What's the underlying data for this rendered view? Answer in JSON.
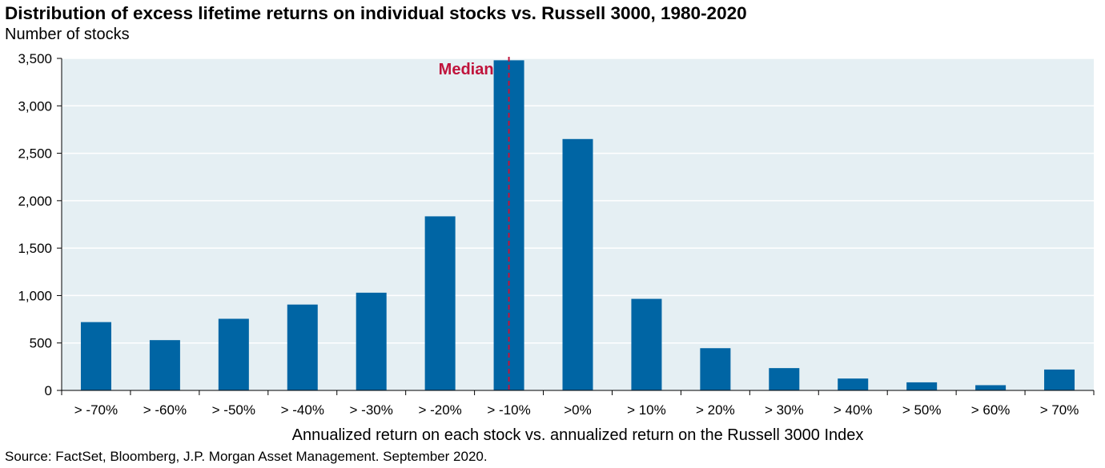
{
  "header": {
    "title": "Distribution of excess lifetime returns on individual stocks vs. Russell 3000, 1980-2020",
    "subtitle": "Number of stocks"
  },
  "footer": {
    "source": "Source: FactSet, Bloomberg, J.P. Morgan Asset Management. September 2020."
  },
  "chart_data": {
    "type": "bar",
    "title": "Distribution of excess lifetime returns on individual stocks vs. Russell 3000, 1980-2020",
    "ylabel": "Number of stocks",
    "xlabel": "Annualized return on each stock vs. annualized return on the Russell 3000 Index",
    "categories": [
      "> -70%",
      "> -60%",
      "> -50%",
      "> -40%",
      "> -30%",
      "> -20%",
      "> -10%",
      ">0%",
      "> 10%",
      "> 20%",
      "> 30%",
      "> 40%",
      "> 50%",
      "> 60%",
      "> 70%"
    ],
    "values": [
      720,
      530,
      755,
      905,
      1030,
      1835,
      3480,
      2650,
      965,
      445,
      235,
      125,
      85,
      55,
      220
    ],
    "ylim": [
      0,
      3500
    ],
    "yticks": [
      0,
      500,
      1000,
      1500,
      2000,
      2500,
      3000,
      3500
    ],
    "ytick_labels": [
      "0",
      "500",
      "1,000",
      "1,500",
      "2,000",
      "2,500",
      "3,000",
      "3,500"
    ],
    "grid": true,
    "bar_color": "#0065A4",
    "plot_background": "#E5EFF3",
    "gridline_color": "#FFFFFF",
    "annotation": {
      "label": "Median",
      "category": "> -10%",
      "color": "#C0143C",
      "style": "dashed vertical line"
    }
  }
}
